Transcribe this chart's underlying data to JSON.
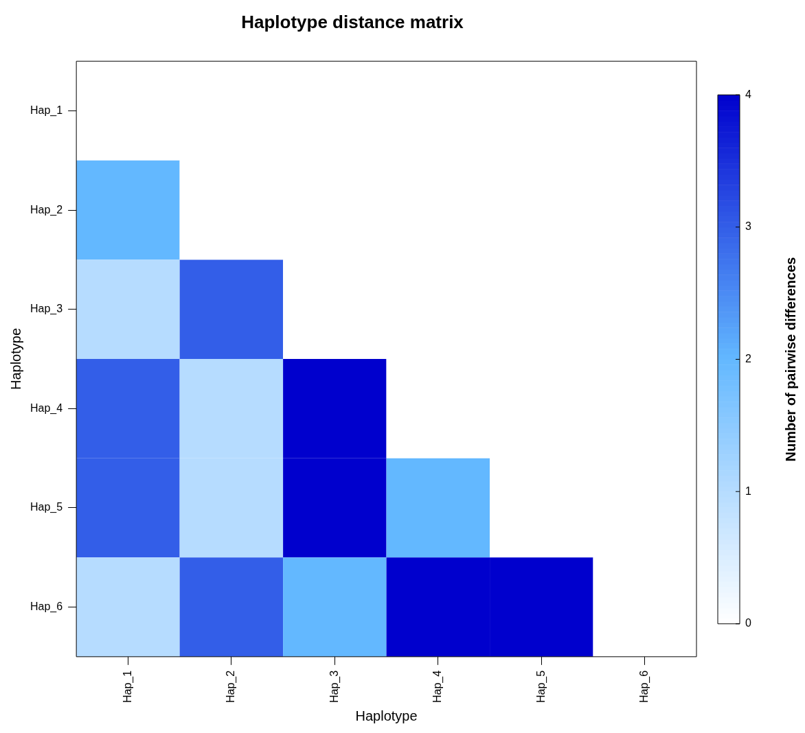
{
  "chart_data": {
    "type": "heatmap",
    "title": "Haplotype distance matrix",
    "xlabel": "Haplotype",
    "ylabel": "Haplotype",
    "clabel": "Number of pairwise differences",
    "categories": [
      "Hap_1",
      "Hap_2",
      "Hap_3",
      "Hap_4",
      "Hap_5",
      "Hap_6"
    ],
    "y_categories": [
      "Hap_1",
      "Hap_2",
      "Hap_3",
      "Hap_4",
      "Hap_5",
      "Hap_6"
    ],
    "cells": [
      [
        0,
        null,
        null,
        null,
        null,
        null
      ],
      [
        2,
        0,
        null,
        null,
        null,
        null
      ],
      [
        1,
        3,
        0,
        null,
        null,
        null
      ],
      [
        3,
        1,
        4,
        0,
        null,
        null
      ],
      [
        3,
        1,
        4,
        2,
        0,
        null
      ],
      [
        1,
        3,
        2,
        4,
        4,
        0
      ]
    ],
    "clim": [
      0,
      4
    ],
    "cticks": [
      0,
      1,
      2,
      3,
      4
    ]
  }
}
